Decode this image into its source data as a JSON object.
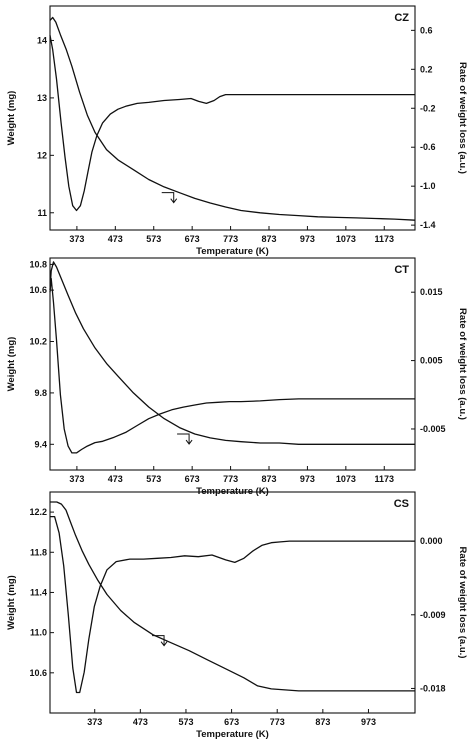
{
  "chart_data": [
    {
      "type": "line",
      "panel_label": "CZ",
      "xlabel": "Temperature (K)",
      "ylabel_left": "Weight (mg)",
      "ylabel_right": "Rate of weight loss (a.u.)",
      "xlim": [
        303,
        1253
      ],
      "xticks": [
        373,
        473,
        573,
        673,
        773,
        873,
        973,
        1073,
        1173
      ],
      "ylim_left": [
        10.7,
        14.6
      ],
      "yticks_left": [
        11.0,
        12.0,
        13.0,
        14.0
      ],
      "ylim_right": [
        -1.45,
        0.85
      ],
      "yticks_right": [
        0.6,
        0.2,
        -0.2,
        -0.6,
        -1.0,
        -1.4
      ],
      "grid": false,
      "series": [
        {
          "axis": "left",
          "x": [
            303,
            310,
            318,
            330,
            345,
            360,
            380,
            400,
            420,
            450,
            480,
            520,
            560,
            600,
            640,
            680,
            720,
            760,
            800,
            850,
            900,
            950,
            1000,
            1050,
            1100,
            1150,
            1200,
            1253
          ],
          "values": [
            14.35,
            14.4,
            14.32,
            14.1,
            13.85,
            13.55,
            13.1,
            12.7,
            12.4,
            12.1,
            11.92,
            11.75,
            11.58,
            11.45,
            11.35,
            11.25,
            11.17,
            11.1,
            11.04,
            11.0,
            10.97,
            10.95,
            10.93,
            10.92,
            10.91,
            10.9,
            10.89,
            10.87
          ]
        },
        {
          "axis": "right",
          "x": [
            303,
            310,
            320,
            332,
            342,
            352,
            362,
            372,
            382,
            392,
            402,
            412,
            425,
            440,
            460,
            480,
            500,
            530,
            560,
            600,
            640,
            670,
            690,
            710,
            730,
            745,
            760,
            800,
            900,
            1000,
            1100,
            1253
          ],
          "values": [
            0.55,
            0.4,
            0.1,
            -0.35,
            -0.7,
            -1.0,
            -1.2,
            -1.25,
            -1.2,
            -1.05,
            -0.85,
            -0.65,
            -0.48,
            -0.35,
            -0.26,
            -0.21,
            -0.18,
            -0.15,
            -0.14,
            -0.12,
            -0.11,
            -0.1,
            -0.13,
            -0.15,
            -0.12,
            -0.08,
            -0.06,
            -0.06,
            -0.06,
            -0.06,
            -0.06,
            -0.06
          ]
        }
      ]
    },
    {
      "type": "line",
      "panel_label": "CT",
      "xlabel": "Temperature (K)",
      "ylabel_left": "Weight (mg)",
      "ylabel_right": "Rate of weight loss (a.u.)",
      "xlim": [
        303,
        1253
      ],
      "xticks": [
        373,
        473,
        573,
        673,
        773,
        873,
        973,
        1073,
        1173
      ],
      "ylim_left": [
        9.2,
        10.85
      ],
      "yticks_left": [
        9.4,
        9.8,
        10.2,
        10.6,
        10.8
      ],
      "ylim_right": [
        -0.011,
        0.02
      ],
      "yticks_right": [
        0.015,
        0.005,
        -0.005
      ],
      "grid": false,
      "series": [
        {
          "axis": "left",
          "x": [
            303,
            306,
            312,
            320,
            335,
            350,
            370,
            390,
            420,
            450,
            480,
            520,
            560,
            600,
            640,
            680,
            720,
            760,
            800,
            850,
            900,
            950,
            1000,
            1050,
            1100,
            1150,
            1200,
            1253
          ],
          "values": [
            10.6,
            10.75,
            10.82,
            10.78,
            10.67,
            10.56,
            10.42,
            10.3,
            10.15,
            10.03,
            9.93,
            9.8,
            9.69,
            9.6,
            9.53,
            9.48,
            9.45,
            9.43,
            9.42,
            9.41,
            9.41,
            9.4,
            9.4,
            9.4,
            9.4,
            9.4,
            9.4,
            9.4
          ]
        },
        {
          "axis": "right",
          "x": [
            303,
            306,
            312,
            320,
            330,
            340,
            350,
            360,
            372,
            385,
            400,
            420,
            440,
            470,
            500,
            530,
            560,
            590,
            620,
            650,
            680,
            710,
            740,
            770,
            800,
            850,
            900,
            950,
            1000,
            1100,
            1253
          ],
          "values": [
            0.015,
            0.017,
            0.0135,
            0.008,
            0.0,
            -0.005,
            -0.0075,
            -0.0085,
            -0.0085,
            -0.008,
            -0.0075,
            -0.007,
            -0.0068,
            -0.0062,
            -0.0055,
            -0.0045,
            -0.0035,
            -0.0028,
            -0.0022,
            -0.0018,
            -0.0015,
            -0.0012,
            -0.0011,
            -0.001,
            -0.001,
            -0.0009,
            -0.0007,
            -0.0006,
            -0.0006,
            -0.0006,
            -0.0006
          ]
        }
      ]
    },
    {
      "type": "line",
      "panel_label": "CS",
      "xlabel": "Temperature (K)",
      "ylabel_left": "Weight (mg)",
      "ylabel_right": "Rate of weight loss (a.u.)",
      "xlim": [
        275,
        1075
      ],
      "xticks": [
        373,
        473,
        573,
        673,
        773,
        873,
        973
      ],
      "ylim_left": [
        10.2,
        12.4
      ],
      "yticks_left": [
        10.6,
        11.0,
        11.4,
        11.8,
        12.2
      ],
      "ylim_right": [
        -0.021,
        0.006
      ],
      "yticks_right": [
        0.0,
        -0.009,
        -0.018
      ],
      "grid": false,
      "series": [
        {
          "axis": "left",
          "x": [
            275,
            290,
            300,
            310,
            320,
            330,
            345,
            360,
            380,
            400,
            430,
            460,
            500,
            540,
            580,
            620,
            660,
            700,
            730,
            760,
            790,
            820,
            860,
            900,
            950,
            1000,
            1040,
            1075
          ],
          "values": [
            12.3,
            12.3,
            12.28,
            12.22,
            12.1,
            11.98,
            11.82,
            11.68,
            11.52,
            11.38,
            11.22,
            11.1,
            10.98,
            10.9,
            10.82,
            10.73,
            10.64,
            10.55,
            10.47,
            10.44,
            10.43,
            10.42,
            10.42,
            10.42,
            10.42,
            10.42,
            10.42,
            10.42
          ]
        },
        {
          "axis": "right",
          "x": [
            275,
            285,
            295,
            305,
            315,
            325,
            333,
            340,
            350,
            360,
            372,
            385,
            400,
            420,
            450,
            480,
            510,
            540,
            570,
            600,
            630,
            660,
            680,
            700,
            720,
            740,
            760,
            780,
            800,
            850,
            900,
            1000,
            1075
          ],
          "values": [
            0.003,
            0.003,
            0.001,
            -0.003,
            -0.009,
            -0.0155,
            -0.0185,
            -0.0185,
            -0.016,
            -0.012,
            -0.008,
            -0.0055,
            -0.0035,
            -0.0025,
            -0.0022,
            -0.0022,
            -0.0021,
            -0.002,
            -0.0018,
            -0.0019,
            -0.0017,
            -0.0023,
            -0.0026,
            -0.0021,
            -0.0012,
            -0.0005,
            -0.0002,
            -0.0001,
            0.0,
            0.0,
            0.0,
            0.0,
            0.0
          ]
        }
      ]
    }
  ]
}
